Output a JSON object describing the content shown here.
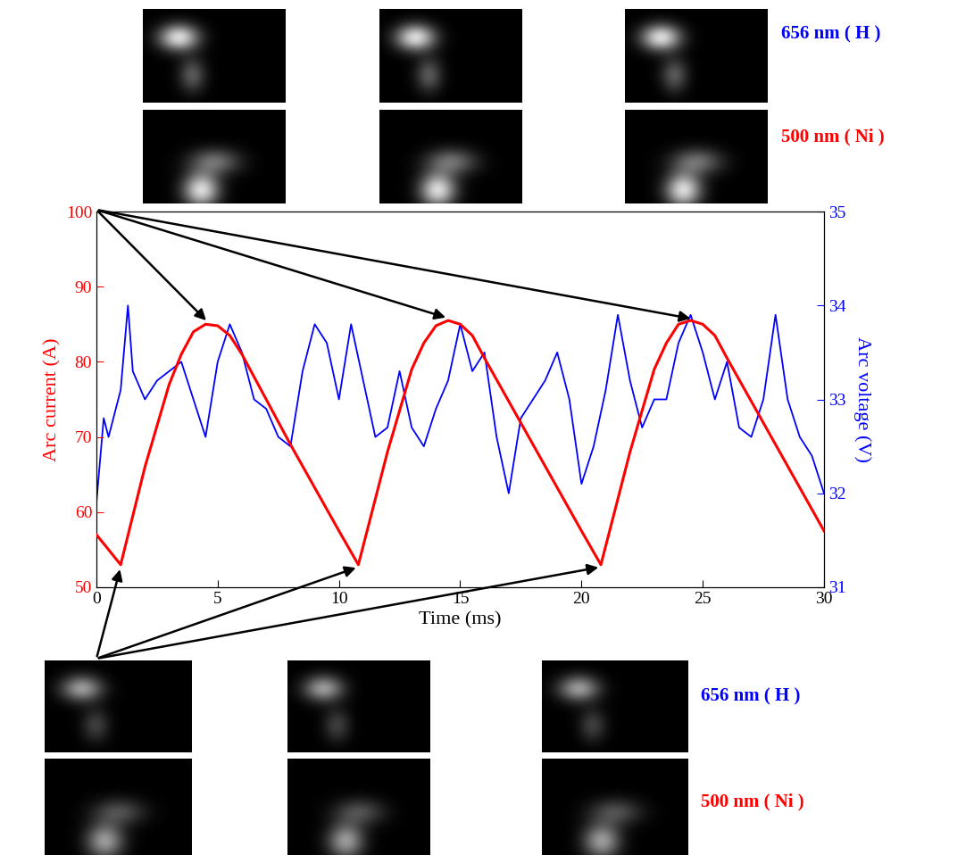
{
  "chart_data": {
    "type": "line",
    "x_label": "Time (ms)",
    "xlim": [
      0,
      30
    ],
    "xticks": [
      0,
      5,
      10,
      15,
      20,
      25,
      30
    ],
    "ylim": [
      50,
      100
    ],
    "yticks": [
      50,
      60,
      70,
      80,
      90,
      100
    ],
    "y2lim": [
      31,
      35
    ],
    "y2ticks": [
      31,
      32,
      33,
      34,
      35
    ],
    "grid": false,
    "series": [
      {
        "name": "Arc current (A)",
        "color": "#ff0000",
        "axis": "y",
        "x": [
          0,
          1,
          2,
          3,
          3.5,
          4,
          4.5,
          5,
          5.5,
          6,
          8,
          10,
          10.8,
          12,
          13,
          13.5,
          14,
          14.5,
          15,
          15.5,
          16,
          18,
          20,
          20.8,
          22,
          23,
          23.5,
          24,
          24.5,
          25,
          25.5,
          26,
          28,
          30
        ],
        "values": [
          57,
          53,
          66,
          77,
          81,
          84,
          85,
          84.8,
          83.5,
          81,
          69,
          57.5,
          53,
          68,
          79,
          82.5,
          84.8,
          85.5,
          85,
          83.5,
          80.5,
          69,
          57.5,
          53,
          68,
          79,
          82.5,
          85,
          85.5,
          85,
          83.5,
          80.5,
          69,
          57.5
        ]
      },
      {
        "name": "Arc voltage (V)",
        "color": "#0000ff",
        "axis": "y2",
        "x": [
          0,
          0.3,
          0.5,
          1,
          1.3,
          1.5,
          2,
          2.5,
          3,
          3.5,
          4,
          4.5,
          5,
          5.5,
          6,
          6.5,
          7,
          7.5,
          8,
          8.5,
          9,
          9.5,
          10,
          10.5,
          11,
          11.5,
          12,
          12.5,
          13,
          13.5,
          14,
          14.5,
          15,
          15.5,
          16,
          16.5,
          17,
          17.5,
          18,
          18.5,
          19,
          19.5,
          20,
          20.5,
          21,
          21.5,
          22,
          22.5,
          23,
          23.5,
          24,
          24.5,
          25,
          25.5,
          26,
          26.5,
          27,
          27.5,
          28,
          28.5,
          29,
          29.5,
          30
        ],
        "values": [
          31.9,
          32.8,
          32.6,
          33.1,
          34.0,
          33.3,
          33.0,
          33.2,
          33.3,
          33.4,
          33.0,
          32.6,
          33.4,
          33.8,
          33.5,
          33.0,
          32.9,
          32.6,
          32.5,
          33.3,
          33.8,
          33.6,
          33.0,
          33.8,
          33.2,
          32.6,
          32.7,
          33.3,
          32.7,
          32.5,
          32.9,
          33.2,
          33.8,
          33.3,
          33.5,
          32.6,
          32.0,
          32.8,
          33.0,
          33.2,
          33.5,
          33.0,
          32.1,
          32.5,
          33.1,
          33.9,
          33.2,
          32.7,
          33.0,
          33.0,
          33.6,
          33.9,
          33.5,
          33.0,
          33.4,
          32.7,
          32.6,
          33.0,
          33.9,
          33.0,
          32.6,
          32.4,
          32.0
        ]
      }
    ],
    "image_labels": [
      {
        "text": "656 nm ( H )",
        "color": "#0000ff"
      },
      {
        "text": "500 nm ( Ni )",
        "color": "#ff0000"
      }
    ],
    "image_times_top": [
      4.6,
      14.5,
      24.6
    ],
    "image_times_bottom": [
      1,
      10.8,
      20.8
    ]
  }
}
